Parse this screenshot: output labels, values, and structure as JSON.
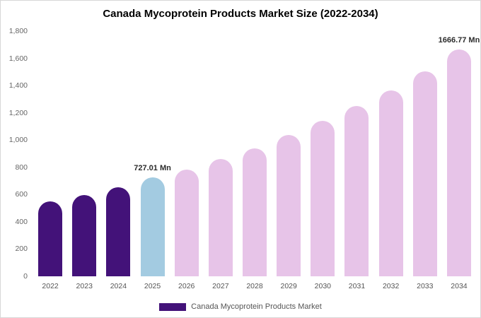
{
  "title": "Canada Mycoprotein Products Market Size (2022-2034)",
  "legend": {
    "label": "Canada Mycoprotein Products Market",
    "swatch_color": "#431279"
  },
  "colors": {
    "historical_bar": "#431279",
    "current_year_bar": "#a3cbe1",
    "forecast_bar": "#e7c4e8",
    "title_text": "#000000",
    "axis_text": "#666666"
  },
  "chart_data": {
    "type": "bar",
    "title": "Canada Mycoprotein Products Market Size (2022-2034)",
    "unit": "Mn",
    "categories": [
      "2022",
      "2023",
      "2024",
      "2025",
      "2026",
      "2027",
      "2028",
      "2029",
      "2030",
      "2031",
      "2032",
      "2033",
      "2034"
    ],
    "values": [
      550,
      595,
      655,
      727.01,
      785,
      860,
      940,
      1035,
      1140,
      1248,
      1365,
      1505,
      1666.77
    ],
    "bar_colors": [
      "#431279",
      "#431279",
      "#431279",
      "#a3cbe1",
      "#e7c4e8",
      "#e7c4e8",
      "#e7c4e8",
      "#e7c4e8",
      "#e7c4e8",
      "#e7c4e8",
      "#e7c4e8",
      "#e7c4e8",
      "#e7c4e8"
    ],
    "annotations": [
      {
        "category": "2025",
        "text": "727.01 Mn"
      },
      {
        "category": "2034",
        "text": "1666.77 Mn"
      }
    ],
    "xlabel": "",
    "ylabel": "",
    "ylim": [
      0,
      1800
    ],
    "ytick_values": [
      0,
      200,
      400,
      600,
      800,
      1000,
      1200,
      1400,
      1600,
      1800
    ],
    "yticks": [
      "0",
      "200",
      "400",
      "600",
      "800",
      "1,000",
      "1,200",
      "1,400",
      "1,600",
      "1,800"
    ],
    "grid": false,
    "legend_position": "bottom"
  }
}
